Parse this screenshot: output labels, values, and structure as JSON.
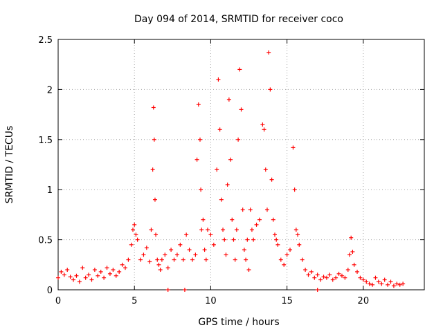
{
  "chart_data": {
    "type": "scatter",
    "title": "Day 094 of 2014, SRMTID for receiver coco",
    "xlabel": "GPS time / hours",
    "ylabel": "SRMTID / TECUs",
    "xlim": [
      0,
      24
    ],
    "ylim": [
      0,
      2.5
    ],
    "xticks": [
      "0",
      "5",
      "10",
      "15",
      "20"
    ],
    "yticks": [
      "0",
      "0.5",
      "1",
      "1.5",
      "2",
      "2.5"
    ],
    "xtick_values": [
      0,
      5,
      10,
      15,
      20
    ],
    "ytick_values": [
      0,
      0.5,
      1,
      1.5,
      2,
      2.5
    ],
    "grid": true,
    "marker": "+",
    "series": [
      {
        "name": "SRMTID",
        "color": "#ff0000",
        "x": [
          0.0,
          0.2,
          0.4,
          0.6,
          0.8,
          1.0,
          1.2,
          1.4,
          1.6,
          1.8,
          2.0,
          2.2,
          2.4,
          2.6,
          2.8,
          3.0,
          3.2,
          3.4,
          3.6,
          3.8,
          4.0,
          4.2,
          4.4,
          4.6,
          4.8,
          4.9,
          5.0,
          5.1,
          5.2,
          5.4,
          5.6,
          5.8,
          6.0,
          6.1,
          6.2,
          6.25,
          6.3,
          6.35,
          6.4,
          6.5,
          6.6,
          6.7,
          6.8,
          7.0,
          7.2,
          7.4,
          7.6,
          7.8,
          8.0,
          8.2,
          8.4,
          8.6,
          8.8,
          9.0,
          9.1,
          9.2,
          9.3,
          9.35,
          9.4,
          9.5,
          9.6,
          9.7,
          9.8,
          10.0,
          10.2,
          10.4,
          10.5,
          10.6,
          10.7,
          10.8,
          10.9,
          11.0,
          11.1,
          11.2,
          11.3,
          11.4,
          11.5,
          11.6,
          11.7,
          11.8,
          11.9,
          12.0,
          12.1,
          12.2,
          12.3,
          12.4,
          12.5,
          12.6,
          12.7,
          12.8,
          13.0,
          13.2,
          13.4,
          13.5,
          13.6,
          13.7,
          13.8,
          13.9,
          14.0,
          14.1,
          14.2,
          14.3,
          14.4,
          14.6,
          14.8,
          15.0,
          15.2,
          15.4,
          15.5,
          15.6,
          15.7,
          15.8,
          16.0,
          16.2,
          16.4,
          16.6,
          16.8,
          17.0,
          17.2,
          17.4,
          17.6,
          17.8,
          18.0,
          18.2,
          18.4,
          18.6,
          18.8,
          19.0,
          19.1,
          19.2,
          19.3,
          19.4,
          19.6,
          19.8,
          20.0,
          20.2,
          20.4,
          20.6,
          20.8,
          21.0,
          21.2,
          21.4,
          21.6,
          21.8,
          22.0,
          22.2,
          22.4,
          22.6,
          7.2,
          8.3,
          17.0
        ],
        "y": [
          0.12,
          0.18,
          0.15,
          0.2,
          0.13,
          0.1,
          0.14,
          0.08,
          0.22,
          0.12,
          0.15,
          0.1,
          0.2,
          0.14,
          0.18,
          0.12,
          0.22,
          0.16,
          0.2,
          0.14,
          0.18,
          0.25,
          0.22,
          0.3,
          0.45,
          0.6,
          0.65,
          0.55,
          0.5,
          0.3,
          0.35,
          0.42,
          0.28,
          0.6,
          1.2,
          1.82,
          1.5,
          0.9,
          0.55,
          0.3,
          0.25,
          0.2,
          0.3,
          0.35,
          0.22,
          0.4,
          0.3,
          0.35,
          0.45,
          0.3,
          0.55,
          0.4,
          0.3,
          0.35,
          1.3,
          1.85,
          1.5,
          1.0,
          0.6,
          0.7,
          0.4,
          0.3,
          0.6,
          0.55,
          0.45,
          1.2,
          2.1,
          1.6,
          0.9,
          0.6,
          0.5,
          0.35,
          1.05,
          1.9,
          1.3,
          0.7,
          0.5,
          0.3,
          0.6,
          1.5,
          2.2,
          1.8,
          0.8,
          0.4,
          0.3,
          0.5,
          0.2,
          0.8,
          0.6,
          0.5,
          0.65,
          0.7,
          1.65,
          1.6,
          1.2,
          0.8,
          2.37,
          2.0,
          1.1,
          0.7,
          0.55,
          0.5,
          0.45,
          0.3,
          0.25,
          0.35,
          0.4,
          1.42,
          1.0,
          0.6,
          0.55,
          0.45,
          0.3,
          0.2,
          0.15,
          0.18,
          0.12,
          0.15,
          0.1,
          0.13,
          0.12,
          0.15,
          0.1,
          0.12,
          0.16,
          0.14,
          0.12,
          0.2,
          0.35,
          0.52,
          0.38,
          0.25,
          0.18,
          0.12,
          0.1,
          0.08,
          0.06,
          0.05,
          0.12,
          0.08,
          0.06,
          0.1,
          0.05,
          0.08,
          0.04,
          0.06,
          0.05,
          0.06,
          0.0,
          0.0,
          0.0
        ]
      }
    ]
  }
}
